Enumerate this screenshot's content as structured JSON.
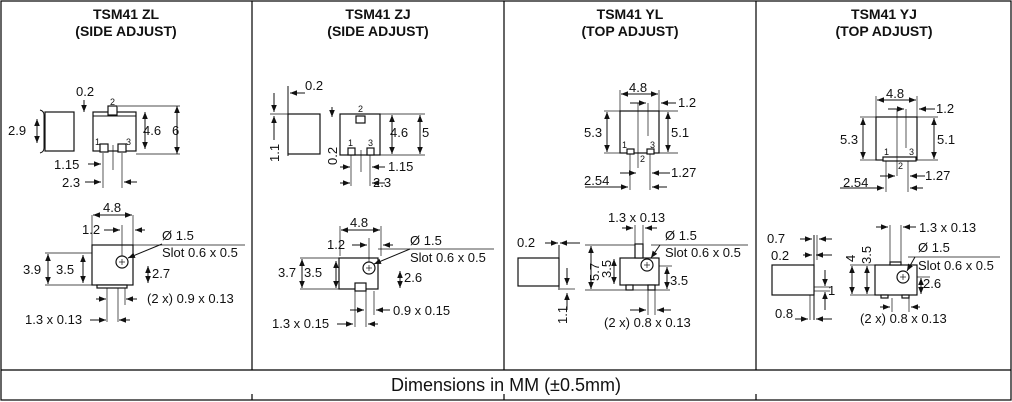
{
  "panels": [
    {
      "title": "TSM41 ZL",
      "subtitle": "(SIDE ADJUST)",
      "labels": [
        "0.2",
        "2.9",
        "4.6",
        "6",
        "1.15",
        "2.3",
        "4.8",
        "1.2",
        "Ø 1.5",
        "Slot 0.6 x 0.5",
        "3.9",
        "3.5",
        "2.7",
        "(2 x) 0.9 x 0.13",
        "1.3 x 0.13"
      ],
      "pins": [
        "1",
        "2",
        "3"
      ]
    },
    {
      "title": "TSM41 ZJ",
      "subtitle": "(SIDE ADJUST)",
      "labels": [
        "0.2",
        "1.1",
        "0.2",
        "4.6",
        "5",
        "1.15",
        "2.3",
        "4.8",
        "1.2",
        "Ø 1.5",
        "Slot 0.6 x 0.5",
        "3.7",
        "3.5",
        "2.6",
        "0.9 x 0.15",
        "1.3 x 0.15"
      ],
      "pins": [
        "1",
        "2",
        "3"
      ]
    },
    {
      "title": "TSM41 YL",
      "subtitle": "(TOP ADJUST)",
      "labels": [
        "4.8",
        "1.2",
        "5.3",
        "5.1",
        "2.54",
        "1.27",
        "1.3 x 0.13",
        "Ø 1.5",
        "Slot 0.6 x 0.5",
        "0.2",
        "5.7",
        "3.5",
        "3.5",
        "1.1",
        "(2 x) 0.8 x 0.13"
      ],
      "pins": [
        "1",
        "2",
        "3"
      ]
    },
    {
      "title": "TSM41 YJ",
      "subtitle": "(TOP ADJUST)",
      "labels": [
        "4.8",
        "1.2",
        "5.3",
        "5.1",
        "2.54",
        "1.27",
        "1.3 x 0.13",
        "0.7",
        "Ø 1.5",
        "0.2",
        "4",
        "3.5",
        "Slot 0.6 x 0.5",
        "2.6",
        "1",
        "0.8",
        "(2 x) 0.8 x 0.13"
      ],
      "pins": [
        "1",
        "2",
        "3"
      ]
    }
  ],
  "footer": "Dimensions in MM (±0.5mm)"
}
